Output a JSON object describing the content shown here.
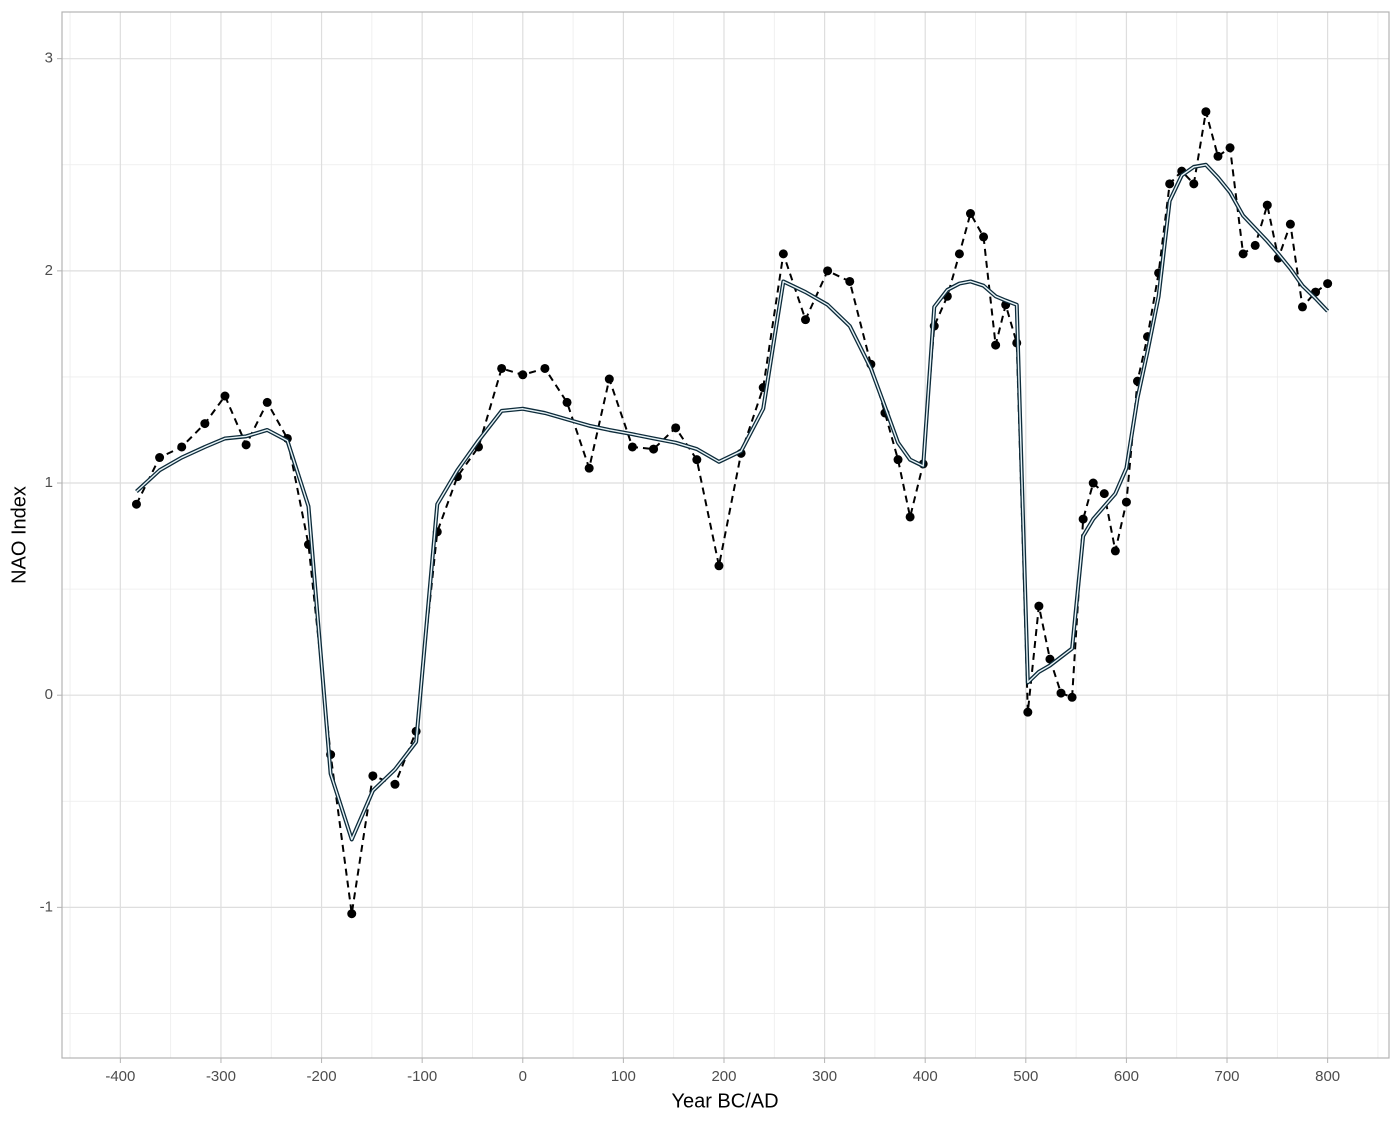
{
  "chart_data": {
    "type": "line",
    "x_label": "Year BC/AD",
    "y_label": "NAO Index",
    "x": [
      -384,
      -361,
      -339,
      -316,
      -296,
      -275,
      -254,
      -234,
      -213,
      -191,
      -170,
      -149,
      -127,
      -106,
      -85,
      -65,
      -44,
      -21,
      0,
      22,
      44,
      66,
      86,
      109,
      130,
      152,
      173,
      195,
      217,
      239,
      259,
      281,
      303,
      325,
      346,
      360,
      373,
      385,
      398,
      409,
      422,
      434,
      445,
      458,
      470,
      480,
      491,
      502,
      513,
      524,
      535,
      546,
      557,
      567,
      578,
      589,
      600,
      611,
      621,
      632,
      643,
      655,
      667,
      679,
      691,
      703,
      716,
      728,
      740,
      751,
      763,
      775,
      788,
      800
    ],
    "series": [
      {
        "color": "#000000",
        "line_style": "dashed",
        "markers": true,
        "values": [
          0.9,
          1.12,
          1.17,
          1.28,
          1.41,
          1.18,
          1.38,
          1.21,
          0.71,
          -0.28,
          -1.03,
          -0.38,
          -0.42,
          -0.17,
          0.77,
          1.03,
          1.17,
          1.54,
          1.51,
          1.54,
          1.38,
          1.07,
          1.49,
          1.17,
          1.16,
          1.26,
          1.11,
          0.61,
          1.14,
          1.45,
          2.08,
          1.77,
          2.0,
          1.95,
          1.56,
          1.33,
          1.11,
          0.84,
          1.09,
          1.74,
          1.88,
          2.08,
          2.27,
          2.16,
          1.65,
          1.84,
          1.66,
          -0.08,
          0.42,
          0.17,
          0.01,
          -0.01,
          0.83,
          1.0,
          0.95,
          0.68,
          0.91,
          1.48,
          1.69,
          1.99,
          2.41,
          2.47,
          2.41,
          2.75,
          2.54,
          2.58,
          2.08,
          2.12,
          2.31,
          2.06,
          2.22,
          1.83,
          1.9,
          1.94
        ]
      },
      {
        "color": "#0d2b3a",
        "line_style": "double",
        "markers": false,
        "values": [
          0.96,
          1.06,
          1.12,
          1.17,
          1.21,
          1.22,
          1.25,
          1.2,
          0.89,
          -0.37,
          -0.68,
          -0.45,
          -0.35,
          -0.22,
          0.9,
          1.06,
          1.2,
          1.34,
          1.35,
          1.33,
          1.3,
          1.27,
          1.25,
          1.23,
          1.21,
          1.19,
          1.16,
          1.1,
          1.15,
          1.35,
          1.95,
          1.9,
          1.84,
          1.74,
          1.54,
          1.36,
          1.19,
          1.11,
          1.08,
          1.83,
          1.91,
          1.94,
          1.95,
          1.93,
          1.88,
          1.86,
          1.84,
          0.06,
          0.11,
          0.14,
          0.18,
          0.22,
          0.75,
          0.83,
          0.89,
          0.95,
          1.07,
          1.4,
          1.62,
          1.88,
          2.33,
          2.45,
          2.49,
          2.5,
          2.44,
          2.37,
          2.26,
          2.2,
          2.14,
          2.08,
          2.01,
          1.93,
          1.87,
          1.81
        ]
      }
    ],
    "xlim": [
      -458,
      861
    ],
    "ylim": [
      -1.71,
      3.22
    ],
    "xticks": [
      -400,
      -300,
      -200,
      -100,
      0,
      100,
      200,
      300,
      400,
      500,
      600,
      700,
      800
    ],
    "yticks": [
      -1,
      0,
      1,
      2,
      3
    ],
    "grid": true
  }
}
